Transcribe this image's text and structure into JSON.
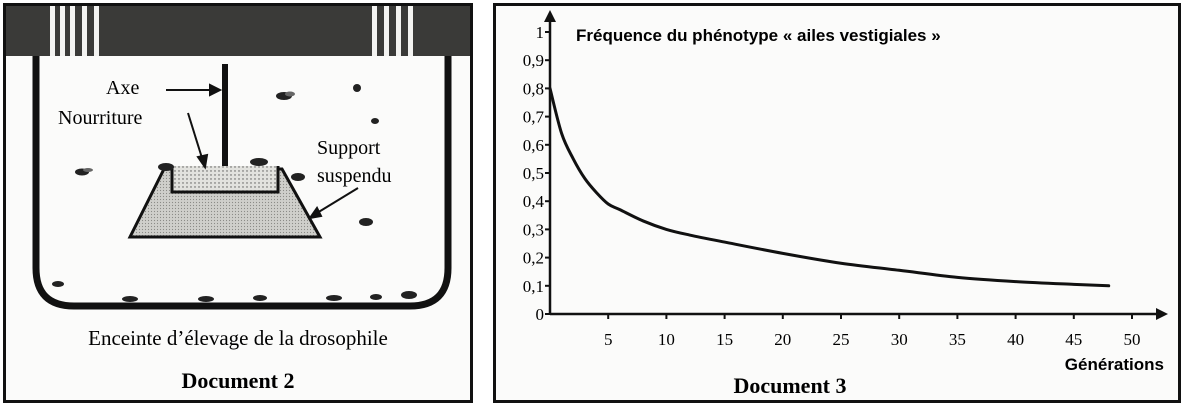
{
  "document2": {
    "caption": "Document 2",
    "label_axe": "Axe",
    "label_nourriture": "Nourriture",
    "label_support_line1": "Support",
    "label_support_line2": "suspendu",
    "enclosure_label": "Enceinte d’élevage de la drosophile"
  },
  "document3": {
    "caption": "Document 3",
    "chart_data": {
      "type": "line",
      "title": "Fréquence du phénotype « ailes vestigiales »",
      "xlabel": "Générations",
      "ylabel": "",
      "xlim": [
        0,
        50
      ],
      "ylim": [
        0,
        1
      ],
      "x_ticks": [
        "5",
        "10",
        "15",
        "20",
        "25",
        "30",
        "35",
        "40",
        "45",
        "50"
      ],
      "y_ticks": [
        "0",
        "0,1",
        "0,2",
        "0,3",
        "0,4",
        "0,5",
        "0,6",
        "0,7",
        "0,8",
        "0,9",
        "1"
      ],
      "grid": false,
      "series": [
        {
          "color": "#111111",
          "x": [
            0,
            1,
            2,
            3,
            4,
            5,
            6,
            8,
            10,
            12,
            15,
            20,
            25,
            30,
            35,
            40,
            45,
            48
          ],
          "y": [
            0.8,
            0.64,
            0.55,
            0.48,
            0.43,
            0.39,
            0.37,
            0.33,
            0.3,
            0.28,
            0.255,
            0.215,
            0.18,
            0.155,
            0.13,
            0.115,
            0.105,
            0.1
          ]
        }
      ]
    }
  }
}
